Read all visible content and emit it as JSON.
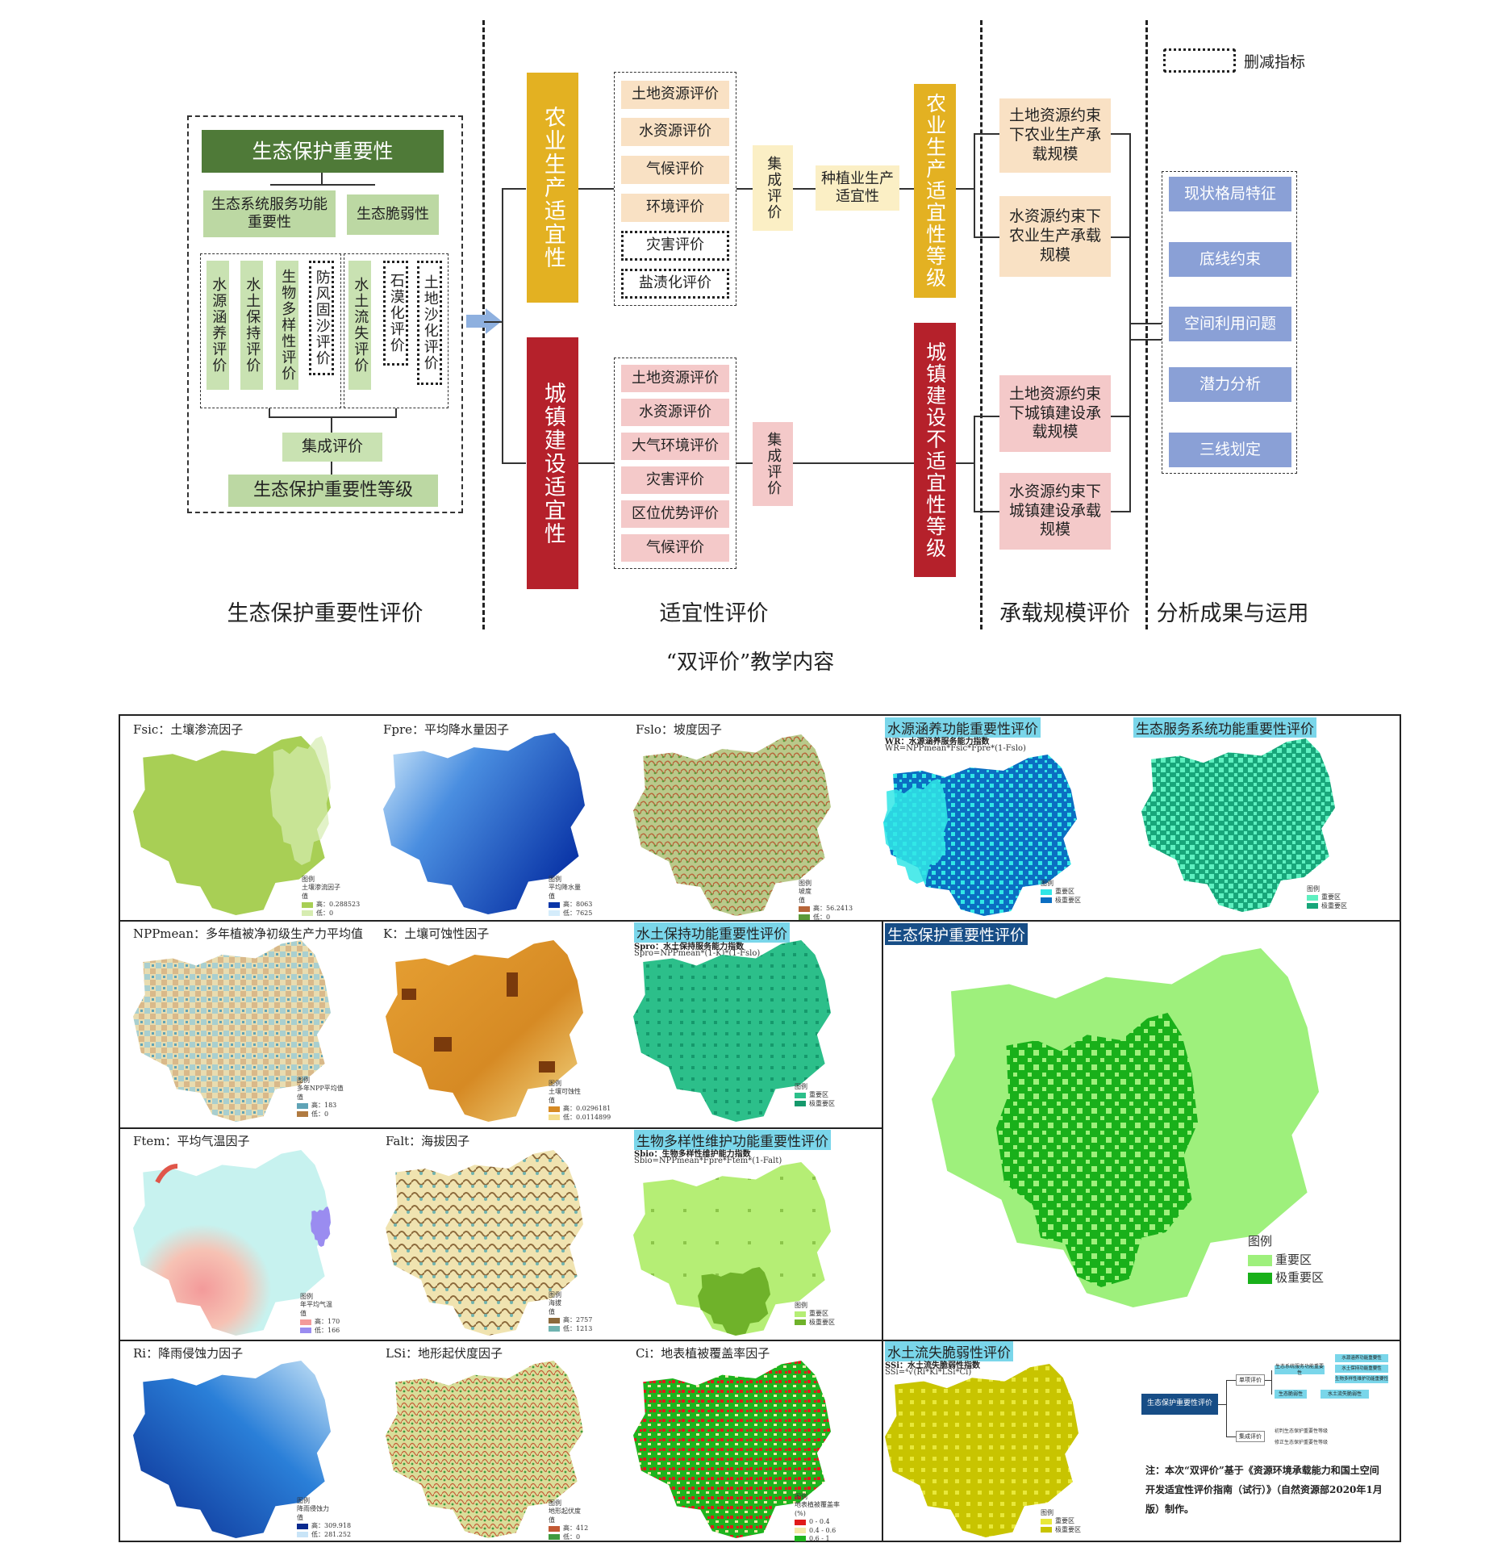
{
  "legend_top": {
    "label": "删减指标"
  },
  "eco": {
    "title": "生态保护重要性",
    "service": "生态系统服务功能重要性",
    "fragility": "生态脆弱性",
    "items": [
      "水源涵养评价",
      "水土保持评价",
      "生物多样性评价",
      "防风固沙评价",
      "水土流失评价",
      "石漠化评价",
      "土地沙化评价"
    ],
    "integrate": "集成评价",
    "grade": "生态保护重要性等级"
  },
  "suit": {
    "agri": "农业生产适宜性",
    "urban": "城镇建设适宜性",
    "agri_items": [
      "土地资源评价",
      "水资源评价",
      "气候评价",
      "环境评价",
      "灾害评价",
      "盐渍化评价"
    ],
    "urban_items": [
      "土地资源评价",
      "水资源评价",
      "大气环境评价",
      "灾害评价",
      "区位优势评价",
      "气候评价"
    ],
    "integrate": "集成评价",
    "planting": "种植业生产适宜性",
    "agri_grade": "农业生产适宜性等级",
    "urban_grade": "城镇建设不适宜性等级"
  },
  "capacity": {
    "items": [
      "土地资源约束下农业生产承载规模",
      "水资源约束下农业生产承载规模",
      "土地资源约束下城镇建设承载规模",
      "水资源约束下城镇建设承载规模"
    ]
  },
  "results": {
    "items": [
      "现状格局特征",
      "底线约束",
      "空间利用问题",
      "潜力分析",
      "三线划定"
    ]
  },
  "section_titles": [
    "生态保护重要性评价",
    "适宜性评价",
    "承载规模评价",
    "分析成果与运用"
  ],
  "caption": "“双评价”教学内容",
  "maps": {
    "fsic": {
      "title": "Fsic：土壤渗流因子",
      "legend": [
        "图例",
        "土壤渗流因子",
        "值",
        "高：0.288523",
        "低：0"
      ]
    },
    "fpre": {
      "title": "Fpre：平均降水量因子",
      "legend": [
        "图例",
        "平均降水量",
        "值",
        "高：8063",
        "低：7625"
      ]
    },
    "fslo": {
      "title": "Fslo：坡度因子",
      "legend": [
        "图例",
        "坡度",
        "值",
        "高：56.2413",
        "低：0"
      ]
    },
    "wr": {
      "title": "水源涵养功能重要性评价",
      "sub": "WR：水源涵养服务能力指数",
      "formula": "WR=NPPmean*Fsic*Fpre*(1-Fslo)",
      "legend": [
        "图例",
        "重要区",
        "极重要区"
      ]
    },
    "eco_service": {
      "title": "生态服务系统功能重要性评价",
      "legend": [
        "图例",
        "重要区",
        "极重要区"
      ]
    },
    "npp": {
      "title": "NPPmean：多年植被净初级生产力平均值",
      "legend": [
        "图例",
        "多年NPP平均值",
        "值",
        "高：183",
        "低：0"
      ]
    },
    "k": {
      "title": "K：土壤可蚀性因子",
      "legend": [
        "图例",
        "土壤可蚀性",
        "值",
        "高：0.0296181",
        "低：0.0114899"
      ]
    },
    "spro": {
      "title": "水土保持功能重要性评价",
      "sub": "Spro：水土保持服务能力指数",
      "formula": "Spro=NPPmean*(1-K)*(1-Fslo)",
      "legend": [
        "图例",
        "重要区",
        "极重要区"
      ]
    },
    "eco_importance": {
      "title": "生态保护重要性评价",
      "legend": [
        "图例",
        "重要区",
        "极重要区"
      ]
    },
    "ftem": {
      "title": "Ftem：平均气温因子",
      "legend": [
        "图例",
        "年平均气温",
        "值",
        "高：170",
        "低：166"
      ]
    },
    "falt": {
      "title": "Falt：海拔因子",
      "legend": [
        "图例",
        "海拔",
        "值",
        "高：2757",
        "低：1213"
      ]
    },
    "sbio": {
      "title": "生物多样性维护功能重要性评价",
      "sub": "Sbio：生物多样性维护能力指数",
      "formula": "Sbio=NPPmean*Fpre*Ftem*(1-Falt)",
      "legend": [
        "图例",
        "重要区",
        "极重要区"
      ]
    },
    "ri": {
      "title": "Ri：降雨侵蚀力因子",
      "legend": [
        "图例",
        "降雨侵蚀力",
        "值",
        "高：309.918",
        "低：281.252"
      ]
    },
    "lsi": {
      "title": "LSi：地形起伏度因子",
      "legend": [
        "图例",
        "地形起伏度",
        "值",
        "高：412",
        "低：0"
      ]
    },
    "ci": {
      "title": "Ci：地表植被覆盖率因子",
      "legend": [
        "图例",
        "地表植被覆盖率",
        "(%)",
        "0 - 0.4",
        "0.4 - 0.6",
        "0.6 - 1"
      ]
    },
    "ssi": {
      "title": "水土流失脆弱性评价",
      "sub": "SSi：水土流失脆弱性指数",
      "formula": "SSi=⁴√(Ri*Ki*LSi*Ci)",
      "legend": [
        "图例",
        "重要区",
        "极重要区"
      ]
    }
  },
  "mini_diagram": {
    "root": "生态保护重要性评价",
    "single": "单项评价",
    "integrated": "集成评价",
    "nodes": [
      "生态系统服务功能重要性",
      "生态脆弱性",
      "水源涵养功能重要性",
      "水土保持功能重要性",
      "生物多样性维护功能重要性",
      "水土流失脆弱性",
      "初判生态保护重要性等级",
      "修正生态保护重要性等级"
    ]
  },
  "note": "注：本次“双评价”基于《资源环境承载能力和国土空间开发适宜性评价指南（试行）》（自然资源部2020年1月版）制作。",
  "colors": {
    "eco_dark": "#4f7a38",
    "agri": "#e3b122",
    "urban": "#b5212b",
    "result": "#8aa0d6",
    "highlight": "#7ad6ea"
  }
}
